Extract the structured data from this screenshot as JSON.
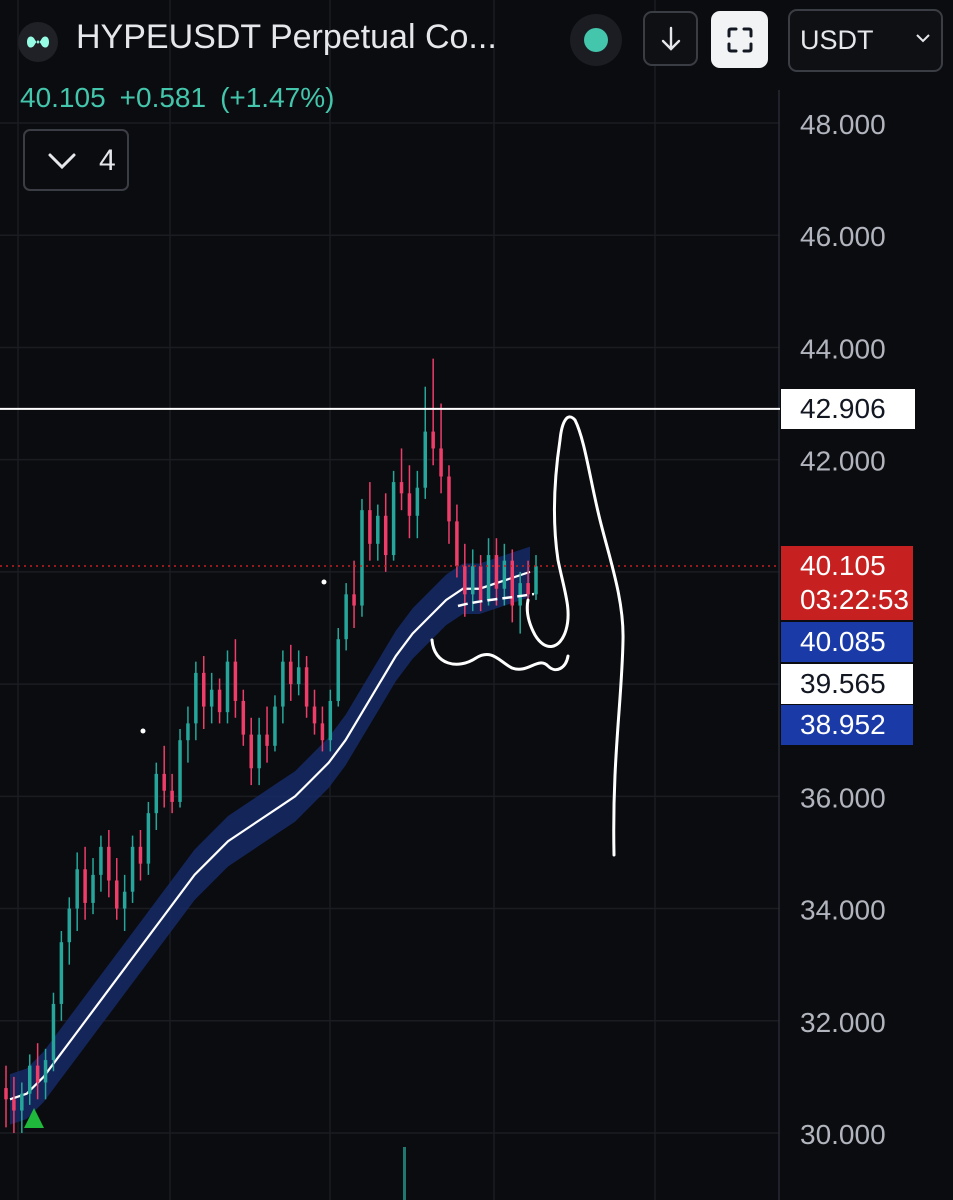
{
  "header": {
    "symbol_title": "HYPEUSDT Perpetual Co...",
    "currency": "USDT",
    "logo_icon": "hyperliquid-logo-icon",
    "status_color": "#43c6ac"
  },
  "quote": {
    "last_price": "40.105",
    "change": "+0.581",
    "change_pct": "(+1.47%)",
    "color": "#43c6ac"
  },
  "indicators": {
    "count": "4"
  },
  "price_axis": {
    "ticks": [
      "48.000",
      "46.000",
      "44.000",
      "42.000",
      "36.000",
      "34.000",
      "32.000",
      "30.000"
    ]
  },
  "price_tags": {
    "horizontal_level": "42.906",
    "current_price": "40.105",
    "countdown": "03:22:53",
    "band_upper": "40.085",
    "band_mid": "39.565",
    "band_lower": "38.952"
  },
  "chart_data": {
    "type": "candlestick",
    "y_axis_range": [
      29.6,
      49.0
    ],
    "up_color": "#26a69a",
    "down_color": "#ef3d6a",
    "horizontal_line": 42.906,
    "current_price": 40.105,
    "ohlc": [
      [
        30.8,
        31.2,
        30.1,
        30.6
      ],
      [
        30.6,
        31.0,
        30.0,
        30.4
      ],
      [
        30.4,
        30.9,
        30.0,
        30.7
      ],
      [
        30.7,
        31.4,
        30.5,
        31.2
      ],
      [
        31.2,
        31.6,
        30.6,
        30.9
      ],
      [
        30.9,
        31.5,
        30.6,
        31.3
      ],
      [
        31.3,
        32.5,
        31.1,
        32.3
      ],
      [
        32.3,
        33.6,
        32.0,
        33.4
      ],
      [
        33.4,
        34.2,
        33.0,
        34.0
      ],
      [
        34.0,
        35.0,
        33.6,
        34.7
      ],
      [
        34.7,
        35.1,
        33.8,
        34.1
      ],
      [
        34.1,
        34.9,
        33.9,
        34.6
      ],
      [
        34.6,
        35.3,
        34.3,
        35.1
      ],
      [
        35.1,
        35.4,
        34.2,
        34.5
      ],
      [
        34.5,
        34.9,
        33.8,
        34.0
      ],
      [
        34.0,
        34.6,
        33.6,
        34.3
      ],
      [
        34.3,
        35.3,
        34.1,
        35.1
      ],
      [
        35.1,
        35.4,
        34.5,
        34.8
      ],
      [
        34.8,
        35.9,
        34.6,
        35.7
      ],
      [
        35.7,
        36.6,
        35.4,
        36.4
      ],
      [
        36.4,
        36.9,
        35.8,
        36.1
      ],
      [
        36.1,
        36.4,
        35.7,
        35.9
      ],
      [
        35.9,
        37.2,
        35.8,
        37.0
      ],
      [
        37.0,
        37.6,
        36.6,
        37.3
      ],
      [
        37.3,
        38.4,
        37.0,
        38.2
      ],
      [
        38.2,
        38.5,
        37.2,
        37.6
      ],
      [
        37.6,
        38.2,
        37.3,
        37.9
      ],
      [
        37.9,
        38.1,
        37.3,
        37.5
      ],
      [
        37.5,
        38.6,
        37.3,
        38.4
      ],
      [
        38.4,
        38.8,
        37.4,
        37.7
      ],
      [
        37.7,
        37.9,
        36.9,
        37.1
      ],
      [
        37.1,
        37.4,
        36.2,
        36.5
      ],
      [
        36.5,
        37.4,
        36.2,
        37.1
      ],
      [
        37.1,
        37.6,
        36.6,
        36.9
      ],
      [
        36.9,
        37.8,
        36.8,
        37.6
      ],
      [
        37.6,
        38.6,
        37.3,
        38.4
      ],
      [
        38.4,
        38.7,
        37.7,
        38.0
      ],
      [
        38.0,
        38.6,
        37.8,
        38.3
      ],
      [
        38.3,
        38.5,
        37.4,
        37.6
      ],
      [
        37.6,
        37.9,
        37.1,
        37.3
      ],
      [
        37.3,
        37.6,
        36.8,
        37.0
      ],
      [
        37.0,
        37.9,
        36.8,
        37.7
      ],
      [
        37.7,
        39.0,
        37.6,
        38.8
      ],
      [
        38.8,
        39.8,
        38.6,
        39.6
      ],
      [
        39.6,
        40.2,
        39.0,
        39.4
      ],
      [
        39.4,
        41.3,
        39.2,
        41.1
      ],
      [
        41.1,
        41.6,
        40.2,
        40.5
      ],
      [
        40.5,
        41.2,
        40.2,
        41.0
      ],
      [
        41.0,
        41.4,
        40.0,
        40.3
      ],
      [
        40.3,
        41.8,
        40.2,
        41.6
      ],
      [
        41.6,
        42.2,
        41.1,
        41.4
      ],
      [
        41.4,
        41.9,
        40.6,
        41.0
      ],
      [
        41.0,
        41.8,
        40.6,
        41.5
      ],
      [
        41.5,
        43.3,
        41.3,
        42.5
      ],
      [
        42.5,
        43.8,
        41.9,
        42.2
      ],
      [
        42.2,
        43.0,
        41.4,
        41.7
      ],
      [
        41.7,
        41.9,
        40.5,
        40.9
      ],
      [
        40.9,
        41.2,
        39.9,
        40.1
      ],
      [
        40.1,
        40.5,
        39.2,
        39.6
      ],
      [
        39.6,
        40.4,
        39.3,
        40.1
      ],
      [
        40.1,
        40.3,
        39.3,
        39.5
      ],
      [
        39.5,
        40.6,
        39.4,
        40.3
      ],
      [
        40.3,
        40.6,
        39.4,
        39.7
      ],
      [
        39.7,
        40.5,
        39.4,
        40.2
      ],
      [
        40.2,
        40.4,
        39.1,
        39.4
      ],
      [
        39.4,
        40.0,
        38.9,
        39.8
      ],
      [
        39.8,
        40.2,
        39.3,
        39.6
      ],
      [
        39.6,
        40.3,
        39.5,
        40.1
      ]
    ],
    "ema": [
      30.6,
      30.7,
      31.0,
      31.4,
      31.8,
      32.2,
      32.6,
      33.0,
      33.4,
      33.8,
      34.2,
      34.6,
      34.9,
      35.2,
      35.4,
      35.6,
      35.8,
      36.0,
      36.3,
      36.6,
      37.0,
      37.5,
      38.0,
      38.5,
      38.9,
      39.2,
      39.5,
      39.7,
      39.7,
      39.8,
      39.9,
      40.0
    ],
    "band_width": 0.45,
    "annotations": [
      "horizontal resistance line",
      "hand-drawn arrow to upside",
      "hand-drawn cup shape"
    ]
  }
}
